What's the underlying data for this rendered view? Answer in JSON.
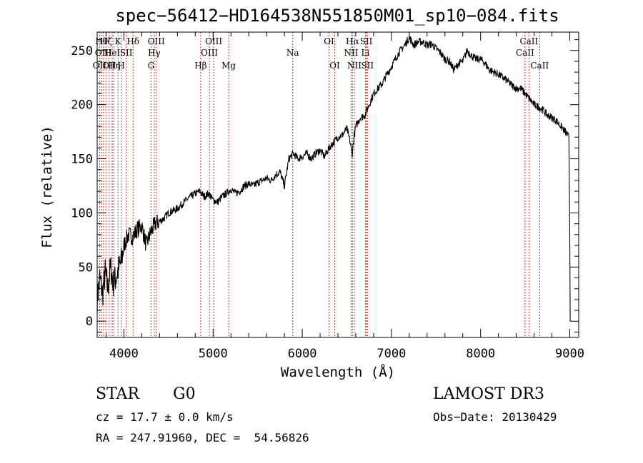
{
  "chart_data": {
    "type": "line",
    "title": "spec−56412−HD164538N551850M01_sp10−084.fits",
    "xlabel": "Wavelength (Å)",
    "ylabel": "Flux (relative)",
    "xlim": [
      3700,
      9100
    ],
    "ylim": [
      -15,
      267
    ],
    "x_ticks": [
      4000,
      5000,
      6000,
      7000,
      8000,
      9000
    ],
    "x_tick_labels": [
      "4000",
      "5000",
      "6000",
      "7000",
      "8000",
      "9000"
    ],
    "y_ticks": [
      0,
      50,
      100,
      150,
      200,
      250
    ],
    "y_tick_labels": [
      "0",
      "50",
      "100",
      "150",
      "200",
      "250"
    ],
    "grid": false,
    "series": [
      {
        "name": "flux",
        "color": "#000000",
        "x": [
          3700,
          3730,
          3760,
          3790,
          3820,
          3850,
          3880,
          3910,
          3940,
          3970,
          4000,
          4050,
          4100,
          4150,
          4200,
          4250,
          4300,
          4350,
          4400,
          4450,
          4500,
          4550,
          4600,
          4650,
          4700,
          4750,
          4800,
          4850,
          4900,
          4950,
          5000,
          5050,
          5100,
          5150,
          5200,
          5250,
          5300,
          5350,
          5400,
          5450,
          5500,
          5550,
          5600,
          5650,
          5700,
          5750,
          5800,
          5850,
          5900,
          5950,
          6000,
          6050,
          6100,
          6150,
          6200,
          6250,
          6300,
          6350,
          6400,
          6450,
          6500,
          6530,
          6560,
          6580,
          6600,
          6650,
          6700,
          6750,
          6800,
          6850,
          6900,
          6950,
          7000,
          7050,
          7100,
          7150,
          7200,
          7250,
          7300,
          7350,
          7400,
          7450,
          7500,
          7550,
          7600,
          7650,
          7700,
          7750,
          7800,
          7850,
          7900,
          7950,
          8000,
          8050,
          8100,
          8150,
          8200,
          8250,
          8300,
          8350,
          8400,
          8450,
          8500,
          8550,
          8600,
          8650,
          8700,
          8750,
          8800,
          8850,
          8900,
          8950,
          8990,
          9000,
          9005
        ],
        "y": [
          20,
          40,
          25,
          45,
          30,
          50,
          35,
          40,
          48,
          55,
          70,
          80,
          78,
          85,
          88,
          70,
          82,
          90,
          92,
          95,
          100,
          102,
          104,
          108,
          112,
          115,
          118,
          120,
          115,
          118,
          112,
          110,
          115,
          118,
          122,
          118,
          120,
          125,
          127,
          125,
          128,
          130,
          132,
          130,
          135,
          138,
          125,
          150,
          155,
          150,
          152,
          155,
          150,
          155,
          158,
          152,
          160,
          165,
          170,
          172,
          178,
          168,
          155,
          170,
          180,
          188,
          190,
          200,
          210,
          215,
          220,
          228,
          235,
          243,
          250,
          255,
          262,
          255,
          258,
          258,
          255,
          256,
          252,
          248,
          242,
          240,
          232,
          238,
          240,
          250,
          245,
          242,
          242,
          238,
          232,
          230,
          228,
          225,
          222,
          218,
          215,
          215,
          210,
          205,
          200,
          198,
          195,
          190,
          188,
          185,
          180,
          175,
          170,
          80,
          0
        ]
      }
    ],
    "line_annotations": [
      {
        "wl": 3727,
        "label": "OII",
        "tier": 2
      },
      {
        "wl": 3750,
        "label": "Hθ",
        "tier": 0
      },
      {
        "wl": 3771,
        "label": "OIII",
        "tier": 1
      },
      {
        "wl": 3798,
        "label": "Hζ",
        "tier": 0
      },
      {
        "wl": 3835,
        "label": "OII",
        "tier": 2
      },
      {
        "wl": 3869,
        "label": "HeI",
        "tier": 1
      },
      {
        "wl": 3889,
        "label": "Hη",
        "tier": 2
      },
      {
        "wl": 3934,
        "label": "K",
        "tier": 0
      },
      {
        "wl": 3969,
        "label": "H",
        "tier": 2
      },
      {
        "wl": 4026,
        "label": "SII",
        "tier": 1
      },
      {
        "wl": 4102,
        "label": "Hδ",
        "tier": 0
      },
      {
        "wl": 4304,
        "label": "G",
        "tier": 2
      },
      {
        "wl": 4340,
        "label": "Hγ",
        "tier": 1
      },
      {
        "wl": 4363,
        "label": "OIII",
        "tier": 0
      },
      {
        "wl": 4861,
        "label": "Hβ",
        "tier": 2
      },
      {
        "wl": 4959,
        "label": "OIII",
        "tier": 1
      },
      {
        "wl": 5007,
        "label": "OIII",
        "tier": 0
      },
      {
        "wl": 5175,
        "label": "Mg",
        "tier": 2
      },
      {
        "wl": 5893,
        "label": "Na",
        "tier": 1
      },
      {
        "wl": 6300,
        "label": "OI",
        "tier": 0
      },
      {
        "wl": 6364,
        "label": "OI",
        "tier": 2
      },
      {
        "wl": 6548,
        "label": "NII",
        "tier": 1
      },
      {
        "wl": 6563,
        "label": "Hα",
        "tier": 0
      },
      {
        "wl": 6584,
        "label": "NII",
        "tier": 2
      },
      {
        "wl": 6708,
        "label": "Li",
        "tier": 1
      },
      {
        "wl": 6717,
        "label": "SII",
        "tier": 0
      },
      {
        "wl": 6731,
        "label": "SII",
        "tier": 2
      },
      {
        "wl": 8498,
        "label": "CaII",
        "tier": 1
      },
      {
        "wl": 8542,
        "label": "CaII",
        "tier": 0
      },
      {
        "wl": 8662,
        "label": "CaII",
        "tier": 2
      }
    ],
    "line_color": "#c0392b"
  },
  "info": {
    "class": "STAR",
    "subclass": "G0",
    "survey": "LAMOST DR3",
    "cz": "cz = 17.7 ± 0.0 km/s",
    "obs_date": "Obs−Date: 20130429",
    "coords": "RA = 247.91960, DEC =  54.56826"
  }
}
